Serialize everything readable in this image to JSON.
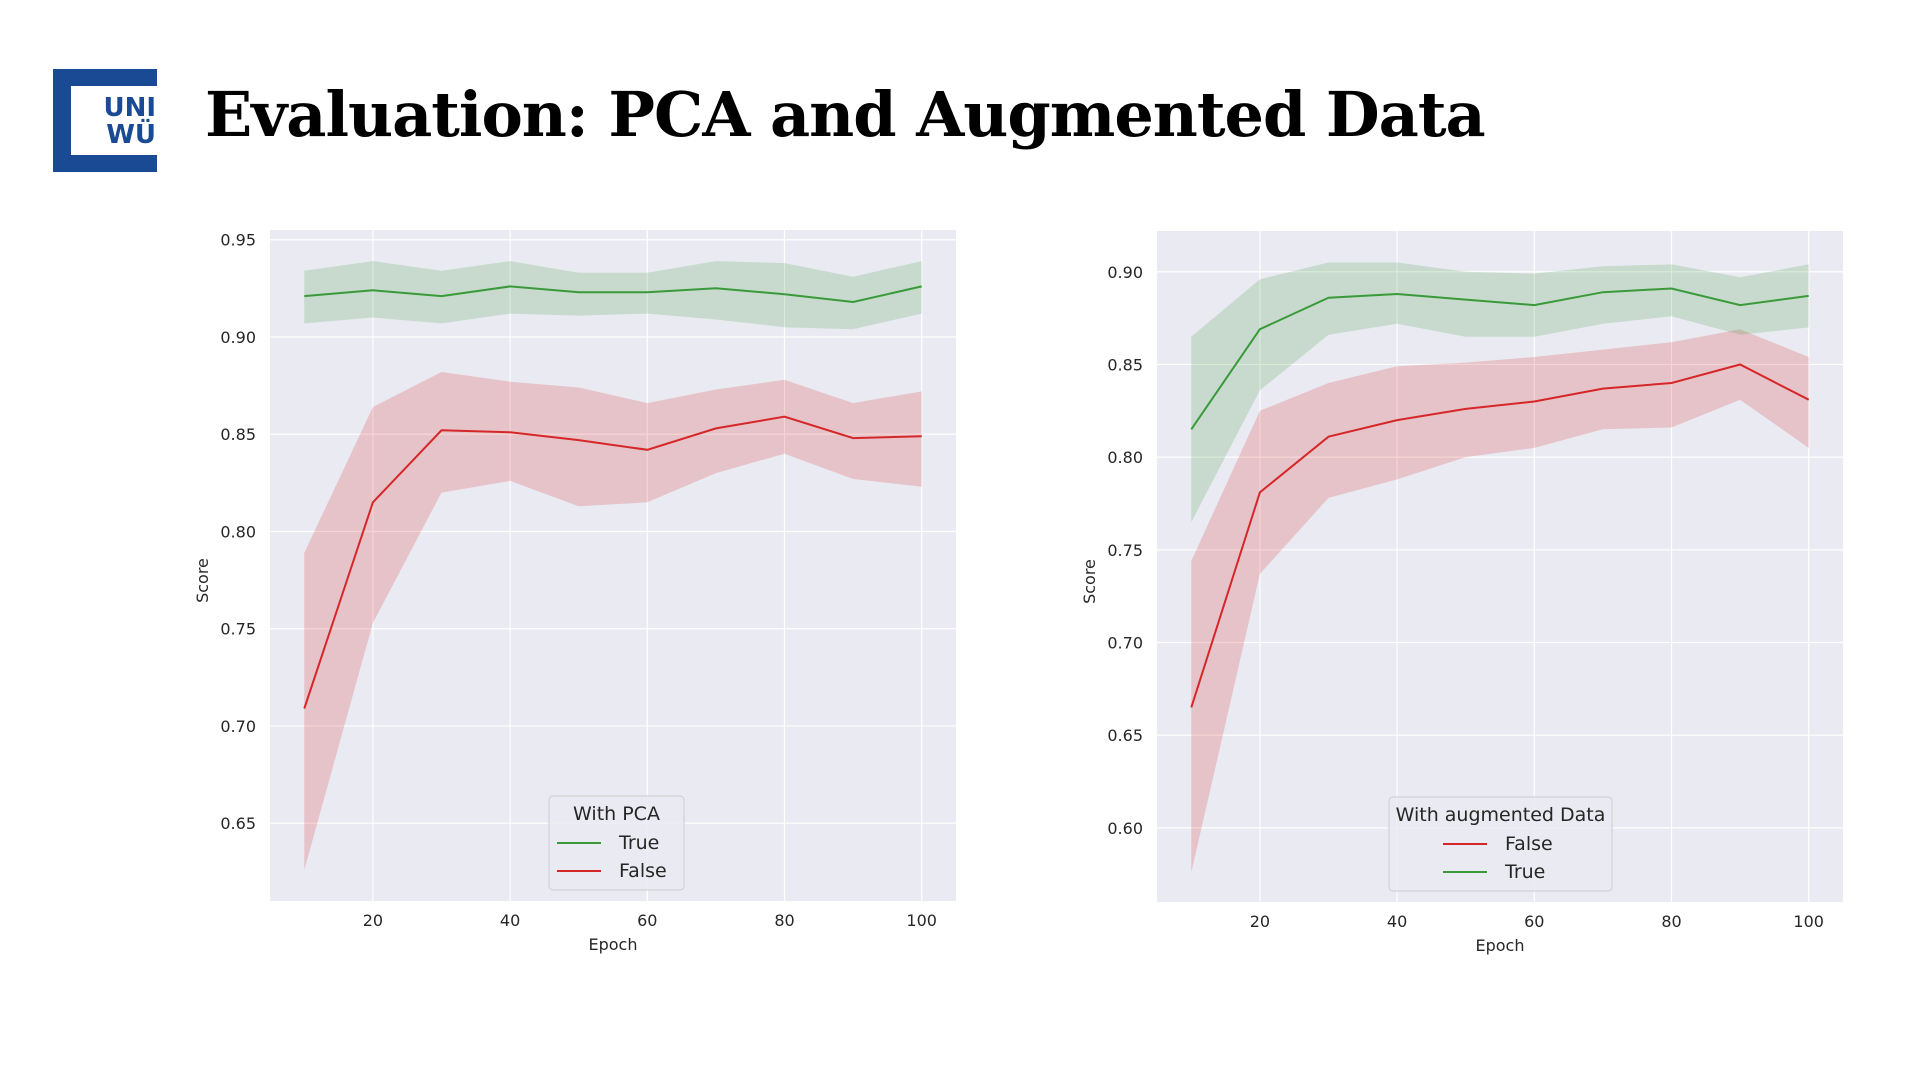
{
  "slide": {
    "title": "Evaluation: PCA and Augmented Data",
    "logo": {
      "line1": "UNI",
      "line2": "WÜ",
      "color": "#1a4a93"
    }
  },
  "colors": {
    "true": "#3a9a3a",
    "false": "#d62728",
    "plot_bg": "#eaeaf2",
    "grid": "#ffffff"
  },
  "chart_data": [
    {
      "type": "line",
      "xlabel": "Epoch",
      "ylabel": "Score",
      "xlim": [
        5,
        105
      ],
      "ylim": [
        0.61,
        0.955
      ],
      "xticks": [
        20,
        40,
        60,
        80,
        100
      ],
      "yticks": [
        0.65,
        0.7,
        0.75,
        0.8,
        0.85,
        0.9,
        0.95
      ],
      "grid": true,
      "legend": {
        "title": "With PCA",
        "placement": "lower-center"
      },
      "x": [
        10,
        20,
        30,
        40,
        50,
        60,
        70,
        80,
        90,
        100
      ],
      "series": [
        {
          "name": "True",
          "color": "#3a9a3a",
          "values": [
            0.921,
            0.924,
            0.921,
            0.926,
            0.923,
            0.923,
            0.925,
            0.922,
            0.918,
            0.926
          ],
          "lower": [
            0.907,
            0.91,
            0.907,
            0.912,
            0.911,
            0.912,
            0.909,
            0.905,
            0.904,
            0.912
          ],
          "upper": [
            0.934,
            0.939,
            0.934,
            0.939,
            0.933,
            0.933,
            0.939,
            0.938,
            0.931,
            0.939
          ]
        },
        {
          "name": "False",
          "color": "#d62728",
          "values": [
            0.709,
            0.815,
            0.852,
            0.851,
            0.847,
            0.842,
            0.853,
            0.859,
            0.848,
            0.849
          ],
          "lower": [
            0.626,
            0.753,
            0.82,
            0.826,
            0.813,
            0.815,
            0.83,
            0.84,
            0.827,
            0.823
          ],
          "upper": [
            0.789,
            0.864,
            0.882,
            0.877,
            0.874,
            0.866,
            0.873,
            0.878,
            0.866,
            0.872
          ]
        }
      ]
    },
    {
      "type": "line",
      "xlabel": "Epoch",
      "ylabel": "Score",
      "xlim": [
        5,
        105
      ],
      "ylim": [
        0.56,
        0.922
      ],
      "xticks": [
        20,
        40,
        60,
        80,
        100
      ],
      "yticks": [
        0.6,
        0.65,
        0.7,
        0.75,
        0.8,
        0.85,
        0.9
      ],
      "grid": true,
      "legend": {
        "title": "With augmented Data",
        "placement": "lower-center"
      },
      "x": [
        10,
        20,
        30,
        40,
        50,
        60,
        70,
        80,
        90,
        100
      ],
      "series": [
        {
          "name": "False",
          "color": "#d62728",
          "values": [
            0.665,
            0.781,
            0.811,
            0.82,
            0.826,
            0.83,
            0.837,
            0.84,
            0.85,
            0.831
          ],
          "lower": [
            0.576,
            0.737,
            0.778,
            0.788,
            0.8,
            0.805,
            0.815,
            0.816,
            0.831,
            0.805
          ],
          "upper": [
            0.744,
            0.825,
            0.84,
            0.849,
            0.851,
            0.854,
            0.858,
            0.862,
            0.869,
            0.854
          ]
        },
        {
          "name": "True",
          "color": "#3a9a3a",
          "values": [
            0.815,
            0.869,
            0.886,
            0.888,
            0.885,
            0.882,
            0.889,
            0.891,
            0.882,
            0.887
          ],
          "lower": [
            0.765,
            0.836,
            0.866,
            0.872,
            0.865,
            0.865,
            0.872,
            0.876,
            0.866,
            0.87
          ],
          "upper": [
            0.865,
            0.896,
            0.905,
            0.905,
            0.9,
            0.899,
            0.903,
            0.904,
            0.897,
            0.904
          ]
        }
      ]
    }
  ]
}
